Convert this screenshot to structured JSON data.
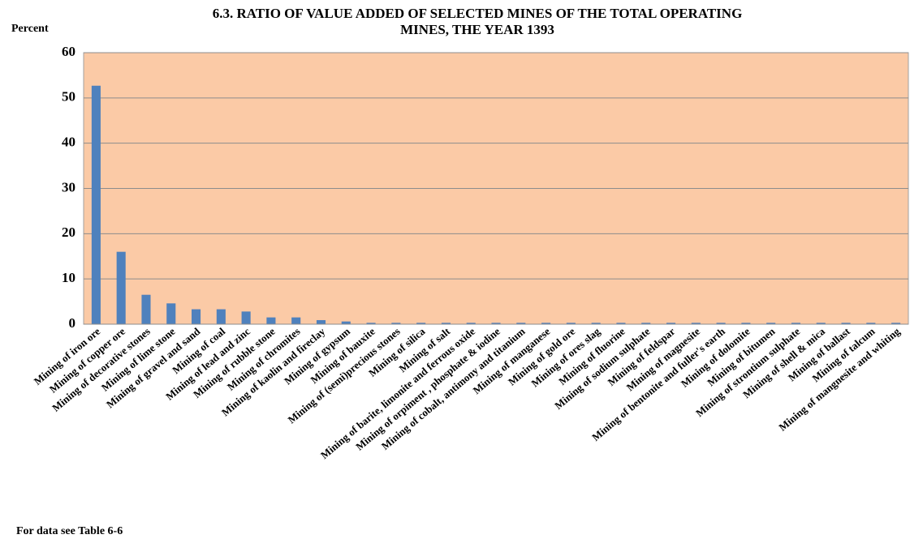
{
  "chart_data": {
    "type": "bar",
    "title": [
      "6.3. RATIO OF VALUE ADDED OF SELECTED MINES OF THE TOTAL  OPERATING",
      "MINES, THE YEAR 1393"
    ],
    "y_axis_label": "Percent",
    "note": "For data see Table 6-6",
    "categories": [
      "Mining of iron ore",
      "Mining of copper ore",
      "Mining of decorative stones",
      "Mining of lime stone",
      "Mining of gravel and sand",
      "Mining of coal",
      "Mining of lead and zinc",
      "Mining of rubble stone",
      "Mining of chromites",
      "Mining of kaolin and fireclay",
      "Mining of gypsum",
      "Mining of bauxite",
      "Mining of (semi)precious stones",
      "Mining of silica",
      "Mining of salt",
      "Mining of barite, limonite and ferrous oxide",
      "Mining of orpiment , phosphate & iodine",
      "Mining of cobalt, antimony and titanium",
      "Mining of manganese",
      "Mining of gold ore",
      "Mining of ores slag",
      "Mining of fluorine",
      "Mining of sodium  sulphate",
      "Mining of feldspar",
      "Mining of magnesite",
      "Mining of bentonite and fuller's earth",
      "Mining of dolomite",
      "Mining of bitumen",
      "Mining of strontium  sulphate",
      "Mining of shell & mica",
      "Mining of ballast",
      "Mining of talcum",
      "Mining of mangnesite and whiting"
    ],
    "values": [
      52.7,
      16,
      6.5,
      4.6,
      3.3,
      3.3,
      2.8,
      1.5,
      1.5,
      0.9,
      0.6,
      0.3,
      0.3,
      0.3,
      0.3,
      0.3,
      0.3,
      0.3,
      0.3,
      0.3,
      0.3,
      0.3,
      0.3,
      0.3,
      0.3,
      0.3,
      0.3,
      0.3,
      0.3,
      0.3,
      0.3,
      0.3,
      0.3
    ],
    "color": "#4f81bd",
    "plot_background": "#fbcaa6",
    "ylim": [
      0,
      60
    ],
    "yticks": [
      0,
      10,
      20,
      30,
      40,
      50,
      60
    ],
    "grid": true
  }
}
